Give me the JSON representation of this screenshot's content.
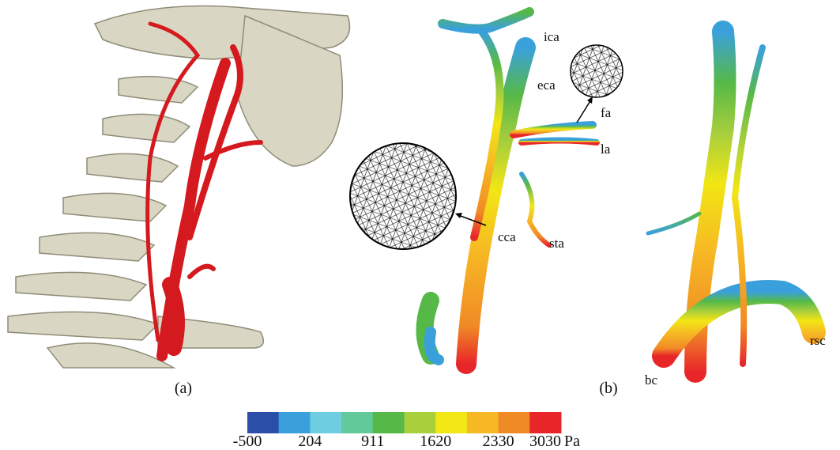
{
  "panels": [
    {
      "label": "(a)"
    },
    {
      "label": "(b)"
    }
  ],
  "annotations": [
    {
      "text": "ica"
    },
    {
      "text": "eca"
    },
    {
      "text": "fa"
    },
    {
      "text": "la"
    },
    {
      "text": "cca"
    },
    {
      "text": "sta"
    },
    {
      "text": "rsc"
    },
    {
      "text": "bc"
    }
  ],
  "colorbar": {
    "colors": [
      "#2b4fa8",
      "#3aa0dc",
      "#6ecde0",
      "#62c99a",
      "#56b947",
      "#a8cf3c",
      "#f2e614",
      "#f6b824",
      "#f08a26",
      "#e8262a"
    ],
    "tick_labels": [
      "-500",
      "204",
      "911",
      "1620",
      "2330",
      "3030"
    ],
    "unit": "Pa"
  }
}
